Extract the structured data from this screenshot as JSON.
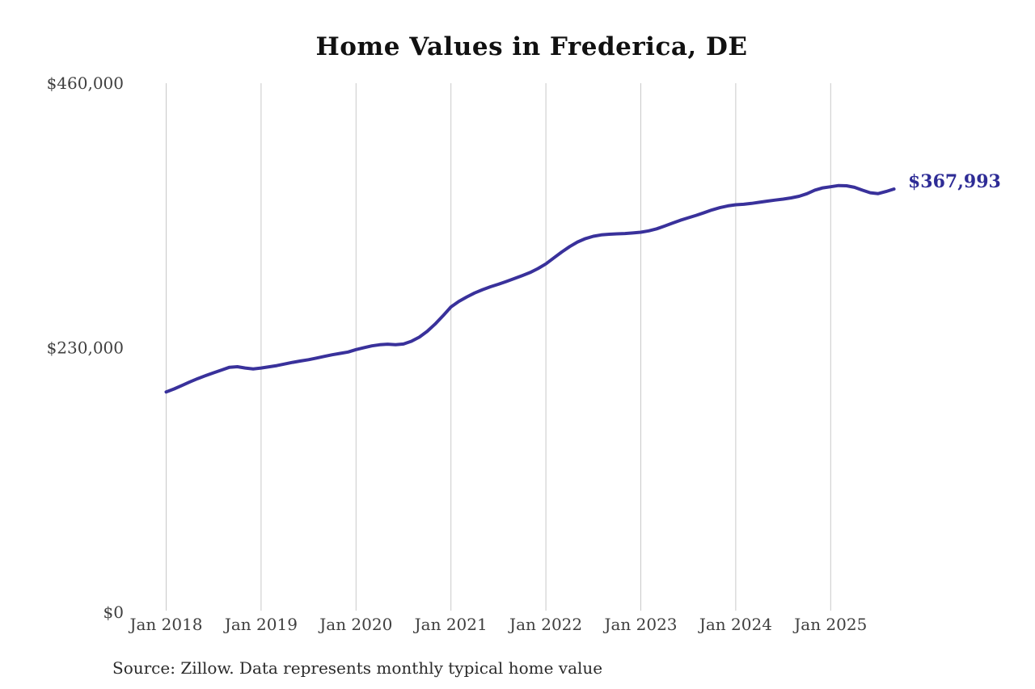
{
  "chart_data": {
    "type": "line",
    "title": "Home Values in Frederica, DE",
    "source_note": "Source: Zillow. Data represents monthly typical home value",
    "end_label": "$367,993",
    "end_value": 367993,
    "x_tick_labels": [
      "Jan 2018",
      "Jan 2019",
      "Jan 2020",
      "Jan 2021",
      "Jan 2022",
      "Jan 2023",
      "Jan 2024",
      "Jan 2025"
    ],
    "y_axis": {
      "max": 460000,
      "ticks": [
        {
          "value": 0,
          "label": "$0"
        },
        {
          "value": 230000,
          "label": "$230,000"
        },
        {
          "value": 460000,
          "label": "$460,000"
        }
      ]
    },
    "grid": {
      "vertical": true,
      "color": "#c9c9c9"
    },
    "text_color": "#3f3f3f",
    "title_color": "#111111",
    "end_label_color": "#2e2c96",
    "series": [
      {
        "name": "Monthly typical home value",
        "color": "#39319b",
        "start_month": "Jan 2018",
        "end_month": "Sep 2025",
        "months_per_point": 1,
        "values": [
          191500,
          194200,
          197200,
          200300,
          203200,
          205800,
          208200,
          210600,
          213000,
          213500,
          212400,
          211600,
          212400,
          213400,
          214500,
          215900,
          217300,
          218500,
          219600,
          221000,
          222500,
          223900,
          225100,
          226300,
          228400,
          230100,
          231600,
          232600,
          233100,
          232700,
          233200,
          235600,
          239200,
          244300,
          250600,
          257800,
          265500,
          270300,
          274200,
          277600,
          280500,
          283000,
          285200,
          287600,
          290100,
          292700,
          295400,
          298800,
          302900,
          308100,
          313200,
          317900,
          321900,
          324900,
          326900,
          328100,
          328700,
          329000,
          329300,
          329800,
          330400,
          331600,
          333400,
          335800,
          338300,
          340800,
          343000,
          345100,
          347400,
          349800,
          351800,
          353300,
          354300,
          354700,
          355500,
          356500,
          357500,
          358400,
          359200,
          360300,
          361700,
          363900,
          367000,
          369000,
          370000,
          371000,
          370800,
          369500,
          367000,
          364800,
          364000,
          365800,
          367993
        ]
      }
    ]
  }
}
